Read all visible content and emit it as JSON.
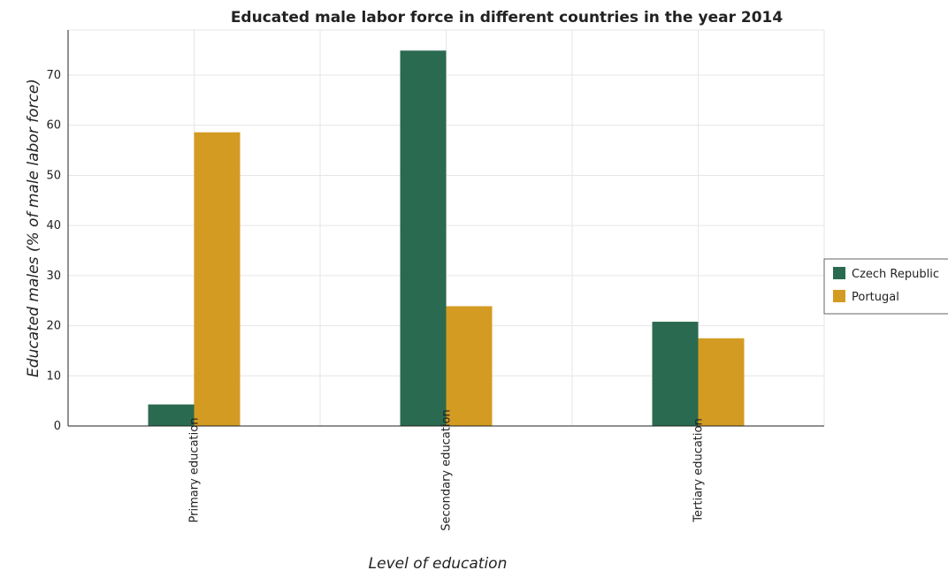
{
  "chart_data": {
    "type": "bar",
    "title": "Educated male labor force in different countries in the year 2014",
    "xlabel": "Level of education",
    "ylabel": "Educated males (% of male labor force)",
    "categories": [
      "Primary education",
      "Secondary education",
      "Tertiary education"
    ],
    "series": [
      {
        "name": "Czech Republic",
        "color": "#2a6a50",
        "values": [
          4.3,
          74.9,
          20.8
        ]
      },
      {
        "name": "Portugal",
        "color": "#d39b22",
        "values": [
          58.6,
          23.9,
          17.5
        ]
      }
    ],
    "ylim": [
      0,
      79
    ],
    "yticks": [
      0,
      10,
      20,
      30,
      40,
      50,
      60,
      70
    ],
    "grid": true,
    "legend_position": "right"
  }
}
